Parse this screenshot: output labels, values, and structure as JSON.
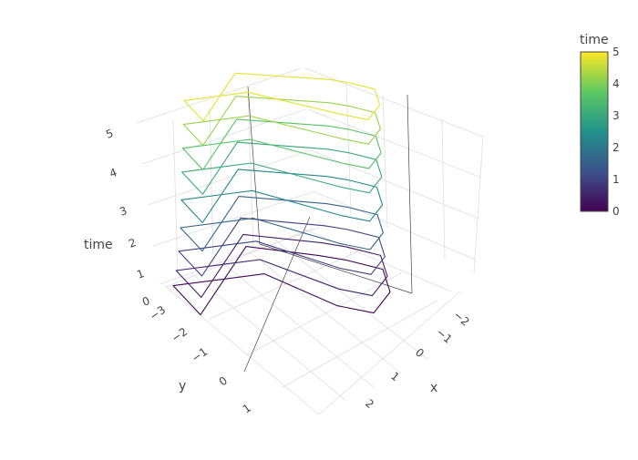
{
  "chart_data": {
    "type": "line3d",
    "axes": {
      "x": {
        "title": "x",
        "ticks": [
          "−2",
          "−1",
          "0",
          "1",
          "2"
        ],
        "tick_values": [
          -2,
          -1,
          0,
          1,
          2
        ]
      },
      "y": {
        "title": "y",
        "ticks": [
          "−3",
          "−2",
          "−1",
          "0",
          "1"
        ],
        "tick_values": [
          -3,
          -2,
          -1,
          0,
          1
        ]
      },
      "z": {
        "title": "time",
        "ticks": [
          "0",
          "1",
          "2",
          "3",
          "4",
          "5"
        ],
        "tick_values": [
          0,
          1,
          2,
          3,
          4,
          5
        ]
      }
    },
    "colorbar": {
      "title": "time",
      "ticks": [
        "0",
        "1",
        "2",
        "3",
        "4",
        "5"
      ],
      "range": [
        0,
        5
      ],
      "colorscale": [
        "#440154",
        "#3b528b",
        "#21918c",
        "#5ec962",
        "#fde725"
      ]
    },
    "series": [
      {
        "z": 0.1,
        "w": 1.0
      },
      {
        "z": 0.5,
        "w": 0.92
      },
      {
        "z": 1.0,
        "w": 0.85
      },
      {
        "z": 1.6,
        "w": 0.8
      },
      {
        "z": 2.3,
        "w": 0.78
      },
      {
        "z": 3.0,
        "w": 0.76
      },
      {
        "z": 3.6,
        "w": 0.74
      },
      {
        "z": 4.2,
        "w": 0.72
      },
      {
        "z": 4.8,
        "w": 0.7
      }
    ]
  }
}
